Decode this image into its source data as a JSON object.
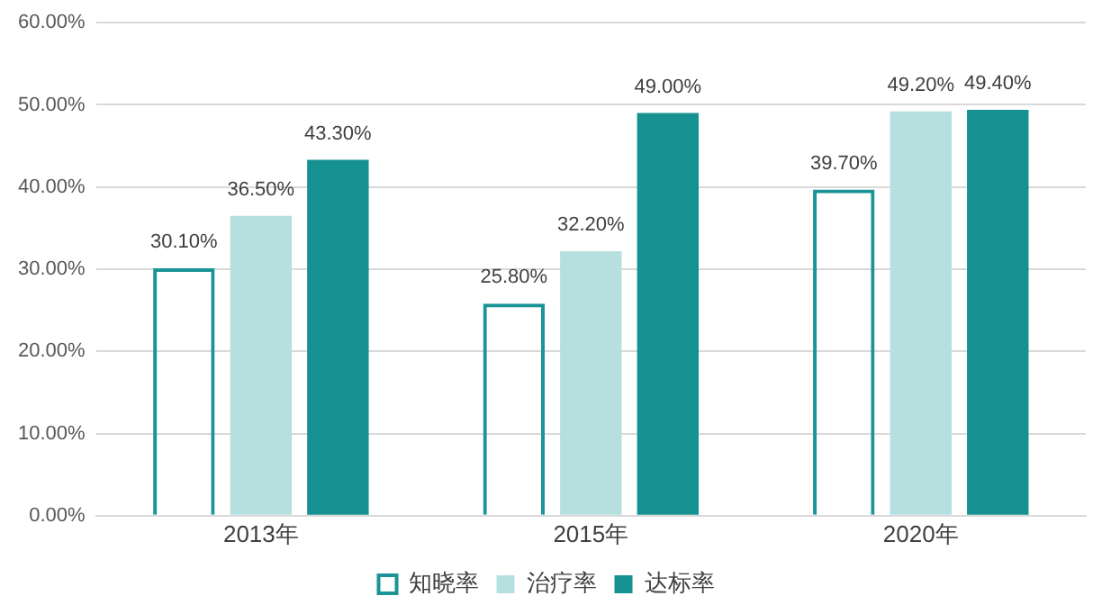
{
  "chart_data": {
    "type": "bar",
    "categories": [
      "2013年",
      "2015年",
      "2020年"
    ],
    "series": [
      {
        "name": "知晓率",
        "color": "#1a9496",
        "values": [
          30.1,
          25.8,
          39.7
        ],
        "value_labels": [
          "30.10%",
          "25.80%",
          "39.70%"
        ]
      },
      {
        "name": "治疗率",
        "color": "#b6dfe0",
        "values": [
          36.5,
          32.2,
          49.2
        ],
        "value_labels": [
          "36.50%",
          "32.20%",
          "49.20%"
        ]
      },
      {
        "name": "达标率",
        "color": "#149190",
        "values": [
          43.3,
          49.0,
          49.4
        ],
        "value_labels": [
          "43.30%",
          "49.00%",
          "49.40%"
        ]
      }
    ],
    "ylim": [
      0,
      60
    ],
    "yticks": [
      {
        "value": 0,
        "label": "0.00%"
      },
      {
        "value": 10,
        "label": "10.00%"
      },
      {
        "value": 20,
        "label": "20.00%"
      },
      {
        "value": 30,
        "label": "30.00%"
      },
      {
        "value": 40,
        "label": "40.00%"
      },
      {
        "value": 50,
        "label": "50.00%"
      },
      {
        "value": 60,
        "label": "60.00%"
      }
    ],
    "grid": "y",
    "legend": "bottom"
  }
}
